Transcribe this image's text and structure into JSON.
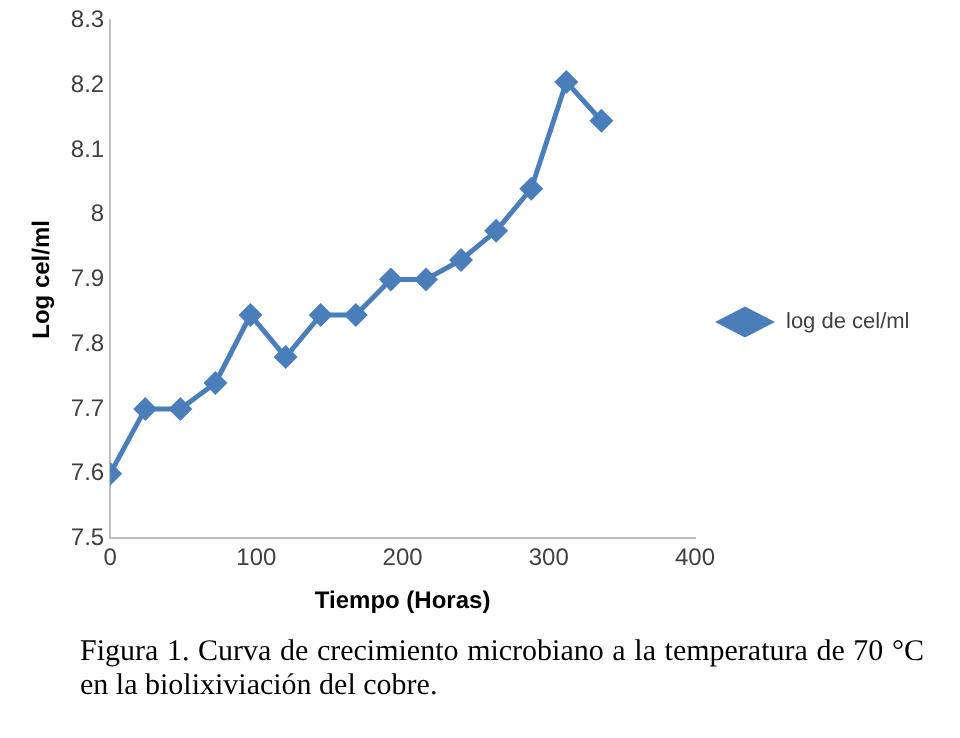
{
  "chart_data": {
    "type": "line",
    "xlabel": "Tiempo (Horas)",
    "ylabel": "Log cel/ml",
    "x": [
      0,
      24,
      48,
      72,
      96,
      120,
      144,
      168,
      192,
      216,
      240,
      264,
      288,
      312,
      336
    ],
    "series": [
      {
        "name": "log de cel/ml",
        "color": "#4a7ebb",
        "values": [
          7.6,
          7.7,
          7.7,
          7.74,
          7.845,
          7.78,
          7.845,
          7.845,
          7.9,
          7.9,
          7.93,
          7.975,
          8.04,
          8.205,
          8.145
        ]
      }
    ],
    "xlim": [
      0,
      400
    ],
    "xticks": [
      0,
      100,
      200,
      300,
      400
    ],
    "ylim": [
      7.5,
      8.3
    ],
    "yticks": [
      7.5,
      7.6,
      7.7,
      7.8,
      7.9,
      8,
      8.1,
      8.2,
      8.3
    ],
    "grid": false,
    "legend": "right",
    "marker": "diamond",
    "line_style": "solid",
    "annotations": [
      "Figura 1. Curva de crecimiento microbiano a la temperatura de 70 °C en la biolixiviación del cobre."
    ]
  }
}
